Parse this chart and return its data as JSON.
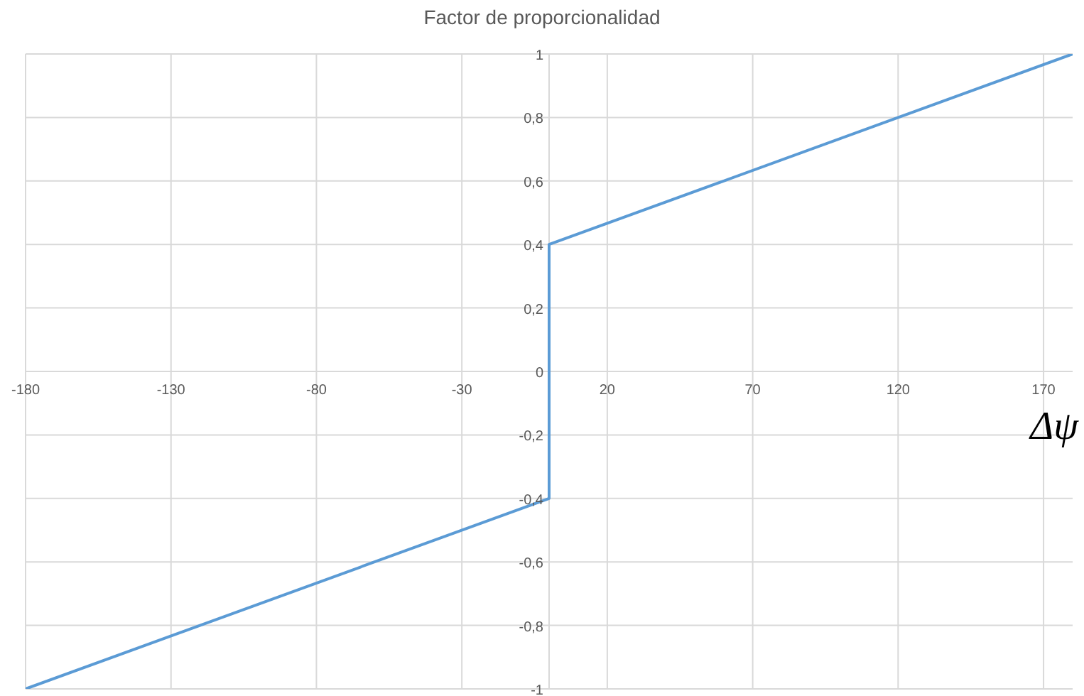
{
  "chart_data": {
    "type": "line",
    "title": "Factor de proporcionalidad",
    "xlabel": "Δψ",
    "x": [
      -180,
      0,
      0,
      180
    ],
    "series": [
      {
        "color": "#5b9bd5",
        "values": [
          -1,
          -0.4,
          0.4,
          1
        ]
      }
    ],
    "xlim": [
      -180,
      180
    ],
    "xticks": [
      -180,
      -130,
      -80,
      -30,
      20,
      70,
      120,
      170
    ],
    "ylim": [
      -1,
      1
    ],
    "yticks": [
      -1,
      {
        "value": -0.8,
        "label": "-0,8"
      },
      {
        "value": -0.6,
        "label": "-0,6"
      },
      {
        "value": -0.4,
        "label": "-0,4"
      },
      {
        "value": -0.2,
        "label": "-0,2"
      },
      0,
      {
        "value": 0.2,
        "label": "0,2"
      },
      {
        "value": 0.4,
        "label": "0,4"
      },
      {
        "value": 0.6,
        "label": "0,6"
      },
      {
        "value": 0.8,
        "label": "0,8"
      },
      1
    ],
    "grid": true,
    "marker": "none",
    "line_style": "solid"
  }
}
